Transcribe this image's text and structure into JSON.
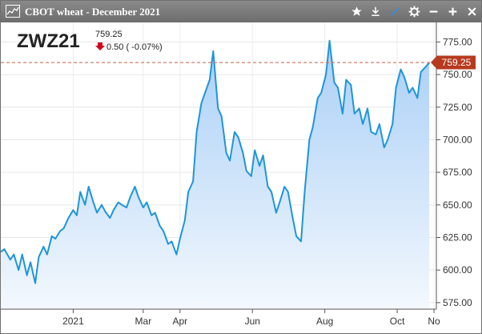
{
  "window": {
    "title": "CBOT wheat - December 2021"
  },
  "toolbar": {
    "icons": [
      "star-icon",
      "download-icon",
      "pen-icon",
      "gear-icon",
      "minimize-icon",
      "maximize-icon",
      "close-icon"
    ]
  },
  "quote": {
    "symbol": "ZWZ21",
    "last": "759.25",
    "change": "0.50 ( -0.07%)",
    "direction": "down",
    "down_color": "#d0021b"
  },
  "colors": {
    "line": "#1e95db",
    "fill_top": "#a9cff7",
    "fill_bottom": "#f3f8fd",
    "last_badge": "#b73a1e",
    "ref_line": "#cc6e55"
  },
  "chart_data": {
    "type": "area",
    "y_tick_labels": [
      "575.00",
      "600.00",
      "625.00",
      "650.00",
      "675.00",
      "700.00",
      "725.00",
      "750.00",
      "775.00"
    ],
    "ylim": [
      570,
      790
    ],
    "y_axis_position": "right",
    "x_tick_labels": [
      "2021",
      "Mar",
      "Apr",
      "Jun",
      "Aug",
      "Oct",
      "No"
    ],
    "x_tick_dates": [
      "2021-01-01",
      "2021-03-01",
      "2021-04-01",
      "2021-06-01",
      "2021-08-01",
      "2021-10-01",
      "2021-11-01"
    ],
    "xlim": [
      "2020-11-01",
      "2021-11-03"
    ],
    "grid": true,
    "last_value": 759.25,
    "last_value_label": "759.25",
    "series": [
      {
        "x": [
          "2020-11-01",
          "2020-11-04",
          "2020-11-09",
          "2020-11-12",
          "2020-11-16",
          "2020-11-19",
          "2020-11-23",
          "2020-11-26",
          "2020-11-30",
          "2020-12-03",
          "2020-12-07",
          "2020-12-10",
          "2020-12-14",
          "2020-12-17",
          "2020-12-21",
          "2020-12-24",
          "2020-12-28",
          "2021-01-01",
          "2021-01-04",
          "2021-01-07",
          "2021-01-11",
          "2021-01-14",
          "2021-01-18",
          "2021-01-21",
          "2021-01-25",
          "2021-01-28",
          "2021-02-01",
          "2021-02-04",
          "2021-02-08",
          "2021-02-11",
          "2021-02-15",
          "2021-02-18",
          "2021-02-22",
          "2021-02-25",
          "2021-03-01",
          "2021-03-04",
          "2021-03-08",
          "2021-03-11",
          "2021-03-15",
          "2021-03-18",
          "2021-03-22",
          "2021-03-25",
          "2021-03-29",
          "2021-04-01",
          "2021-04-05",
          "2021-04-08",
          "2021-04-12",
          "2021-04-15",
          "2021-04-19",
          "2021-04-22",
          "2021-04-26",
          "2021-04-29",
          "2021-05-03",
          "2021-05-06",
          "2021-05-10",
          "2021-05-13",
          "2021-05-17",
          "2021-05-20",
          "2021-05-24",
          "2021-05-27",
          "2021-05-31",
          "2021-06-03",
          "2021-06-07",
          "2021-06-10",
          "2021-06-14",
          "2021-06-17",
          "2021-06-21",
          "2021-06-24",
          "2021-06-28",
          "2021-07-01",
          "2021-07-05",
          "2021-07-08",
          "2021-07-12",
          "2021-07-15",
          "2021-07-19",
          "2021-07-22",
          "2021-07-26",
          "2021-07-29",
          "2021-08-02",
          "2021-08-05",
          "2021-08-09",
          "2021-08-12",
          "2021-08-16",
          "2021-08-19",
          "2021-08-23",
          "2021-08-26",
          "2021-08-30",
          "2021-09-02",
          "2021-09-06",
          "2021-09-09",
          "2021-09-13",
          "2021-09-16",
          "2021-09-20",
          "2021-09-23",
          "2021-09-27",
          "2021-09-30",
          "2021-10-04",
          "2021-10-07",
          "2021-10-11",
          "2021-10-14",
          "2021-10-18",
          "2021-10-21",
          "2021-10-25",
          "2021-10-28"
        ],
        "y": [
          614,
          616,
          608,
          612,
          600,
          612,
          596,
          606,
          590,
          610,
          618,
          612,
          626,
          624,
          630,
          632,
          640,
          646,
          642,
          660,
          650,
          664,
          652,
          644,
          650,
          645,
          640,
          646,
          652,
          650,
          648,
          656,
          664,
          656,
          648,
          652,
          642,
          644,
          634,
          630,
          620,
          622,
          612,
          624,
          638,
          660,
          668,
          706,
          728,
          736,
          746,
          768,
          724,
          718,
          690,
          684,
          706,
          702,
          690,
          676,
          672,
          692,
          680,
          688,
          664,
          660,
          644,
          652,
          664,
          660,
          640,
          626,
          622,
          660,
          700,
          710,
          732,
          736,
          750,
          776,
          744,
          740,
          720,
          746,
          742,
          720,
          724,
          712,
          724,
          706,
          704,
          712,
          694,
          700,
          712,
          740,
          754,
          748,
          736,
          740,
          732,
          752,
          756,
          759
        ]
      }
    ]
  }
}
